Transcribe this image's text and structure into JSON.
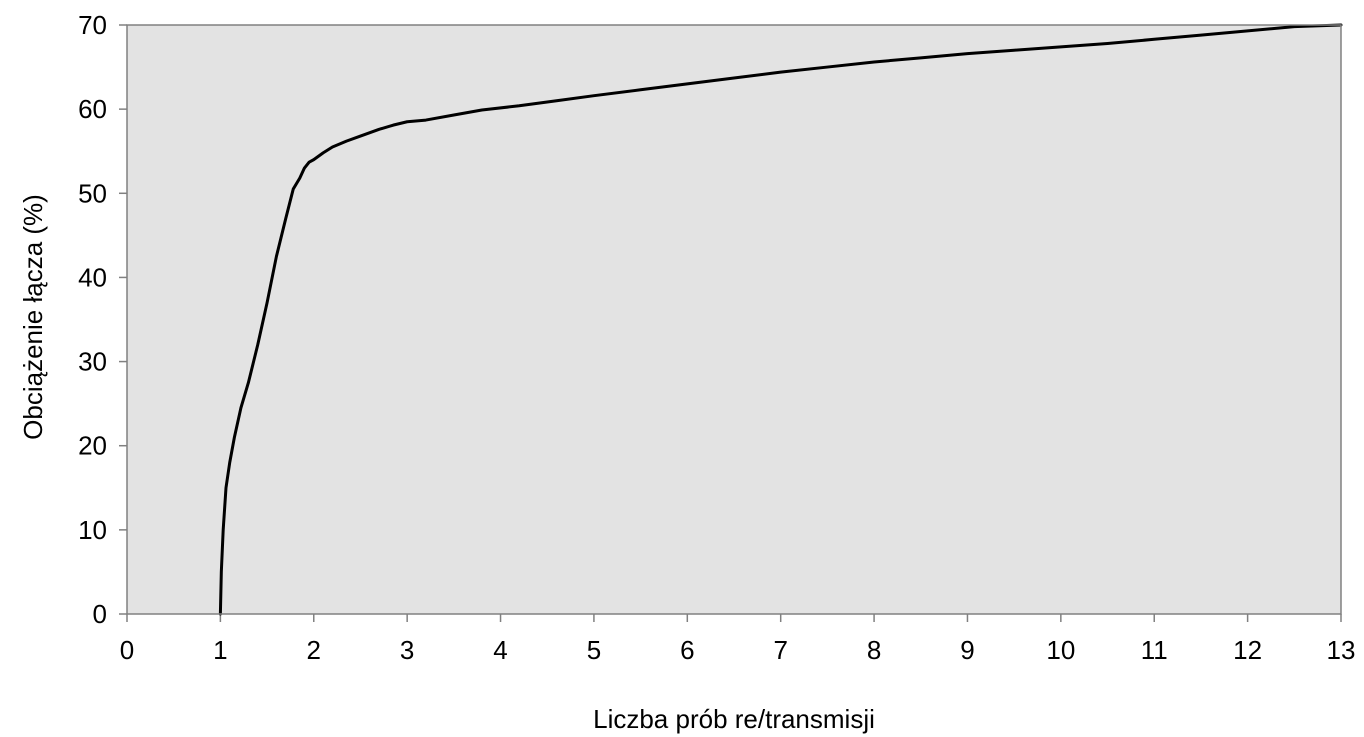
{
  "chart_data": {
    "type": "line",
    "title": "",
    "xlabel": "Liczba prób re/transmisji",
    "ylabel": "Obciążenie łącza (%)",
    "xlim": [
      0,
      13
    ],
    "ylim": [
      0,
      70
    ],
    "x_ticks": [
      "0",
      "1",
      "2",
      "3",
      "4",
      "5",
      "6",
      "7",
      "8",
      "9",
      "10",
      "11",
      "12",
      "13"
    ],
    "y_ticks": [
      "0",
      "10",
      "20",
      "30",
      "40",
      "50",
      "60",
      "70"
    ],
    "grid": false,
    "legend": "none",
    "colors": {
      "plot_background": "#e3e3e3",
      "line": "#000000",
      "axis": "#808080"
    },
    "series": [
      {
        "x": [
          1.0,
          1.01,
          1.03,
          1.06,
          1.1,
          1.15,
          1.22,
          1.3,
          1.4,
          1.5,
          1.6,
          1.7,
          1.78,
          1.85,
          1.9,
          1.95,
          2.0,
          2.1,
          2.2,
          2.35,
          2.5,
          2.7,
          2.85,
          3.0,
          3.2,
          3.5,
          3.8,
          4.2,
          4.6,
          5.0,
          5.5,
          6.0,
          6.5,
          7.0,
          7.5,
          8.0,
          8.5,
          9.0,
          9.5,
          10.0,
          10.5,
          11.0,
          11.5,
          12.0,
          12.5,
          13.0
        ],
        "y": [
          0.0,
          5.0,
          10.0,
          15.0,
          18.0,
          21.0,
          24.5,
          27.5,
          32.0,
          37.0,
          42.5,
          47.0,
          50.5,
          51.8,
          53.0,
          53.7,
          54.0,
          54.8,
          55.5,
          56.2,
          56.8,
          57.6,
          58.1,
          58.5,
          58.7,
          59.3,
          59.9,
          60.4,
          61.0,
          61.6,
          62.3,
          63.0,
          63.7,
          64.4,
          65.0,
          65.6,
          66.1,
          66.6,
          67.0,
          67.4,
          67.8,
          68.3,
          68.8,
          69.3,
          69.8,
          70.0
        ]
      }
    ]
  }
}
